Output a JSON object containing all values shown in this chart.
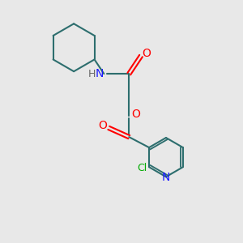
{
  "background_color": "#e8e8e8",
  "bond_color": "#2d6e6e",
  "bond_width": 1.5,
  "N_color": "#1a1aff",
  "O_color": "#ff0000",
  "Cl_color": "#00aa00",
  "figsize": [
    3.0,
    3.0
  ],
  "dpi": 100,
  "xlim": [
    0,
    10
  ],
  "ylim": [
    0,
    10
  ]
}
